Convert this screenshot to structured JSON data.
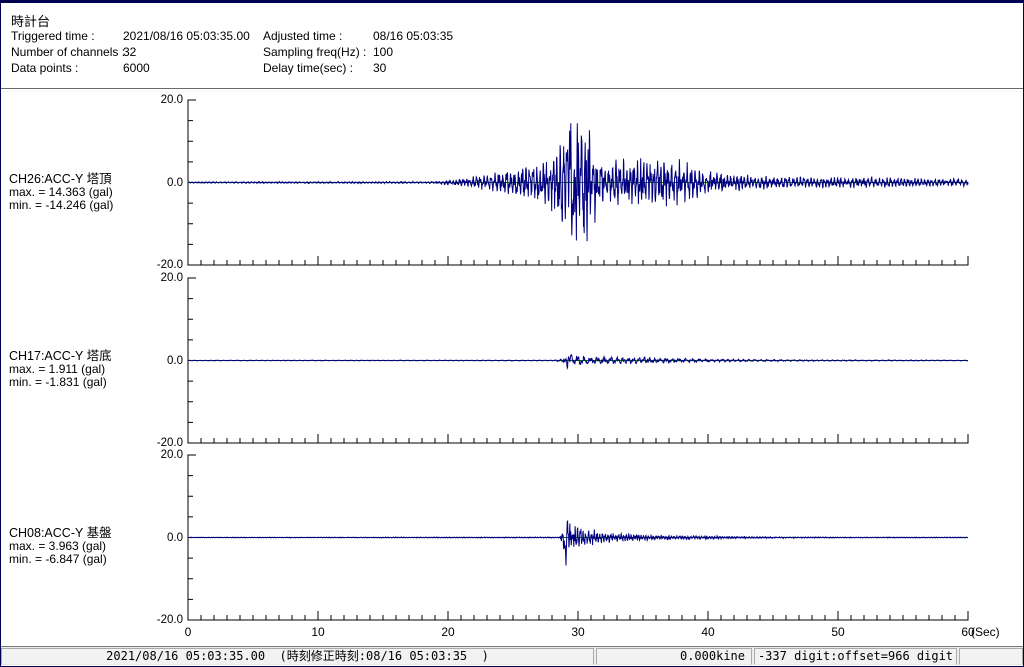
{
  "header": {
    "title": "時計台",
    "fields": [
      {
        "label": "Triggered time :",
        "value": "2021/08/16 05:03:35.00"
      },
      {
        "label": "Adjusted time :",
        "value": "08/16 05:03:35"
      },
      {
        "label": "Number of channels :",
        "value": "32"
      },
      {
        "label": "Sampling freq(Hz) :",
        "value": "100"
      },
      {
        "label": "Data points :",
        "value": "6000"
      },
      {
        "label": "Delay time(sec) :",
        "value": "30"
      }
    ]
  },
  "status_bar": {
    "segments": [
      "2021/08/16 05:03:35.00  (時刻修正時刻:08/16 05:03:35  )",
      "0.000kine",
      "-337 digit:offset=966 digit",
      ""
    ]
  },
  "chart_data": {
    "type": "line",
    "title": "",
    "xlabel": "(Sec)",
    "ylabel": "gal",
    "x_range": [
      0,
      60
    ],
    "x_ticks": [
      0,
      10,
      20,
      30,
      40,
      50,
      60
    ],
    "x_minor_tick_step_sec": 1,
    "y_range": [
      -20,
      20
    ],
    "y_tick_labels": [
      "20.0",
      "0.0",
      "-20.0"
    ],
    "y_minor_tick_step_gal": 5,
    "grid": false,
    "legend_position": "none",
    "waveform_color": "#000080",
    "zero_line_color": "#008000",
    "axis_color": "#000000",
    "sampling_freq_hz": 100,
    "data_points": 6000,
    "channels": [
      {
        "label": "CH26:ACC-Y 塔頂",
        "max_label": "max. = 14.363 (gal)",
        "min_label": "min. = -14.246 (gal)",
        "max": 14.363,
        "min": -14.246,
        "freq": 3.6,
        "seed": 11,
        "envelope": [
          [
            0,
            0.15
          ],
          [
            19,
            0.2
          ],
          [
            20.5,
            0.6
          ],
          [
            22,
            1.2
          ],
          [
            23.5,
            1.8
          ],
          [
            25,
            2.6
          ],
          [
            26.5,
            3.5
          ],
          [
            27.5,
            4.5
          ],
          [
            28.3,
            7
          ],
          [
            29,
            11
          ],
          [
            29.5,
            13.5
          ],
          [
            30.2,
            13
          ],
          [
            30.8,
            11
          ],
          [
            31.5,
            6
          ],
          [
            32.2,
            3
          ],
          [
            33,
            4.5
          ],
          [
            34,
            4.2
          ],
          [
            35,
            4.8
          ],
          [
            36,
            4.2
          ],
          [
            37,
            4.6
          ],
          [
            38,
            3.8
          ],
          [
            39,
            3
          ],
          [
            40,
            2.4
          ],
          [
            42,
            1.7
          ],
          [
            44,
            1.3
          ],
          [
            46,
            1.1
          ],
          [
            50,
            1.0
          ],
          [
            53,
            1.1
          ],
          [
            56,
            0.8
          ],
          [
            60,
            0.7
          ]
        ],
        "spikes": [
          {
            "t": 29.4,
            "v": 6
          },
          {
            "t": 29.65,
            "v": -6
          },
          {
            "t": 30.15,
            "v": 5.5
          },
          {
            "t": 30.45,
            "v": -5.5
          }
        ]
      },
      {
        "label": "CH17:ACC-Y 塔底",
        "max_label": "max. = 1.911 (gal)",
        "min_label": "min. = -1.831 (gal)",
        "max": 1.911,
        "min": -1.831,
        "freq": 2.2,
        "seed": 22,
        "envelope": [
          [
            0,
            0.07
          ],
          [
            28,
            0.09
          ],
          [
            28.8,
            0.3
          ],
          [
            29.2,
            1.6
          ],
          [
            29.6,
            1.2
          ],
          [
            30.2,
            1.0
          ],
          [
            31,
            0.85
          ],
          [
            32,
            0.7
          ],
          [
            33,
            0.75
          ],
          [
            34,
            0.6
          ],
          [
            35,
            0.65
          ],
          [
            36,
            0.5
          ],
          [
            37,
            0.45
          ],
          [
            38,
            0.4
          ],
          [
            39,
            0.35
          ],
          [
            40,
            0.3
          ],
          [
            42,
            0.25
          ],
          [
            44,
            0.2
          ],
          [
            47,
            0.15
          ],
          [
            50,
            0.12
          ],
          [
            60,
            0.09
          ]
        ],
        "spikes": [
          {
            "t": 29.15,
            "v": -1.3
          },
          {
            "t": 29.3,
            "v": 1.3
          }
        ]
      },
      {
        "label": "CH08:ACC-Y 基盤",
        "max_label": "max. = 3.963 (gal)",
        "min_label": "min. = -6.847 (gal)",
        "max": 3.963,
        "min": -6.847,
        "freq": 5.0,
        "seed": 33,
        "envelope": [
          [
            0,
            0.07
          ],
          [
            28.6,
            0.1
          ],
          [
            29,
            2.5
          ],
          [
            29.3,
            3.2
          ],
          [
            29.8,
            2.4
          ],
          [
            30.5,
            1.8
          ],
          [
            31.2,
            1.4
          ],
          [
            32,
            1.1
          ],
          [
            33,
            0.9
          ],
          [
            34,
            0.75
          ],
          [
            35,
            0.6
          ],
          [
            36,
            0.5
          ],
          [
            37,
            0.45
          ],
          [
            38,
            0.4
          ],
          [
            40,
            0.3
          ],
          [
            42,
            0.2
          ],
          [
            45,
            0.15
          ],
          [
            50,
            0.1
          ],
          [
            60,
            0.08
          ]
        ],
        "spikes": [
          {
            "t": 29.05,
            "v": -5.0
          },
          {
            "t": 29.18,
            "v": 2.6
          }
        ]
      }
    ]
  }
}
